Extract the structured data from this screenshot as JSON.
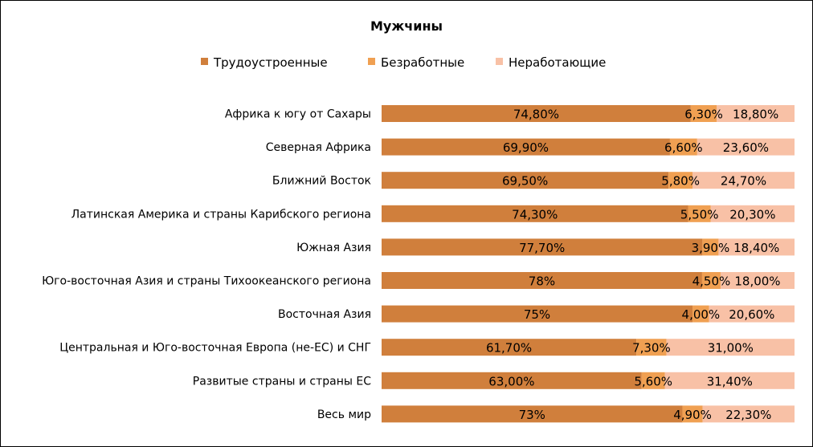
{
  "chart_data": {
    "type": "bar",
    "orientation": "horizontal",
    "stacked": "100%",
    "title": "Мужчины",
    "legend_position": "top",
    "categories": [
      "Африка к югу от Сахары",
      "Северная Африка",
      "Ближний Восток",
      "Латинская Америка и  страны Карибского региона",
      "Южная Азия",
      "Юго-восточная Азия и страны Тихоокеанского региона",
      "Восточная Азия",
      "Центральная и Юго-восточная Европа (не-ЕС) и СНГ",
      "Развитые страны и страны ЕС",
      "Весь мир"
    ],
    "series": [
      {
        "name": "Трудоустроенные",
        "color": "#D07F3C",
        "values": [
          74.8,
          69.9,
          69.5,
          74.3,
          77.7,
          78.0,
          75.0,
          61.7,
          63.0,
          73.0
        ],
        "labels": [
          "74,80%",
          "69,90%",
          "69,50%",
          "74,30%",
          "77,70%",
          "78%",
          "75%",
          "61,70%",
          "63,00%",
          "73%"
        ]
      },
      {
        "name": "Безработные",
        "color": "#F0A052",
        "values": [
          6.3,
          6.6,
          5.8,
          5.5,
          3.9,
          4.5,
          4.0,
          7.3,
          5.6,
          4.9
        ],
        "labels": [
          "6,30%",
          "6,60%",
          "5,80%",
          "5,50%",
          "3,90%",
          "4,50%",
          "4,00%",
          "7,30%",
          "5,60%",
          "4,90%"
        ]
      },
      {
        "name": "Неработающие",
        "color": "#F8C1A6",
        "values": [
          18.8,
          23.6,
          24.7,
          20.3,
          18.4,
          18.0,
          20.6,
          31.0,
          31.4,
          22.3
        ],
        "labels": [
          "18,80%",
          "23,60%",
          "24,70%",
          "20,30%",
          "18,40%",
          "18,00%",
          "20,60%",
          "31,00%",
          "31,40%",
          "22,30%"
        ]
      }
    ]
  }
}
